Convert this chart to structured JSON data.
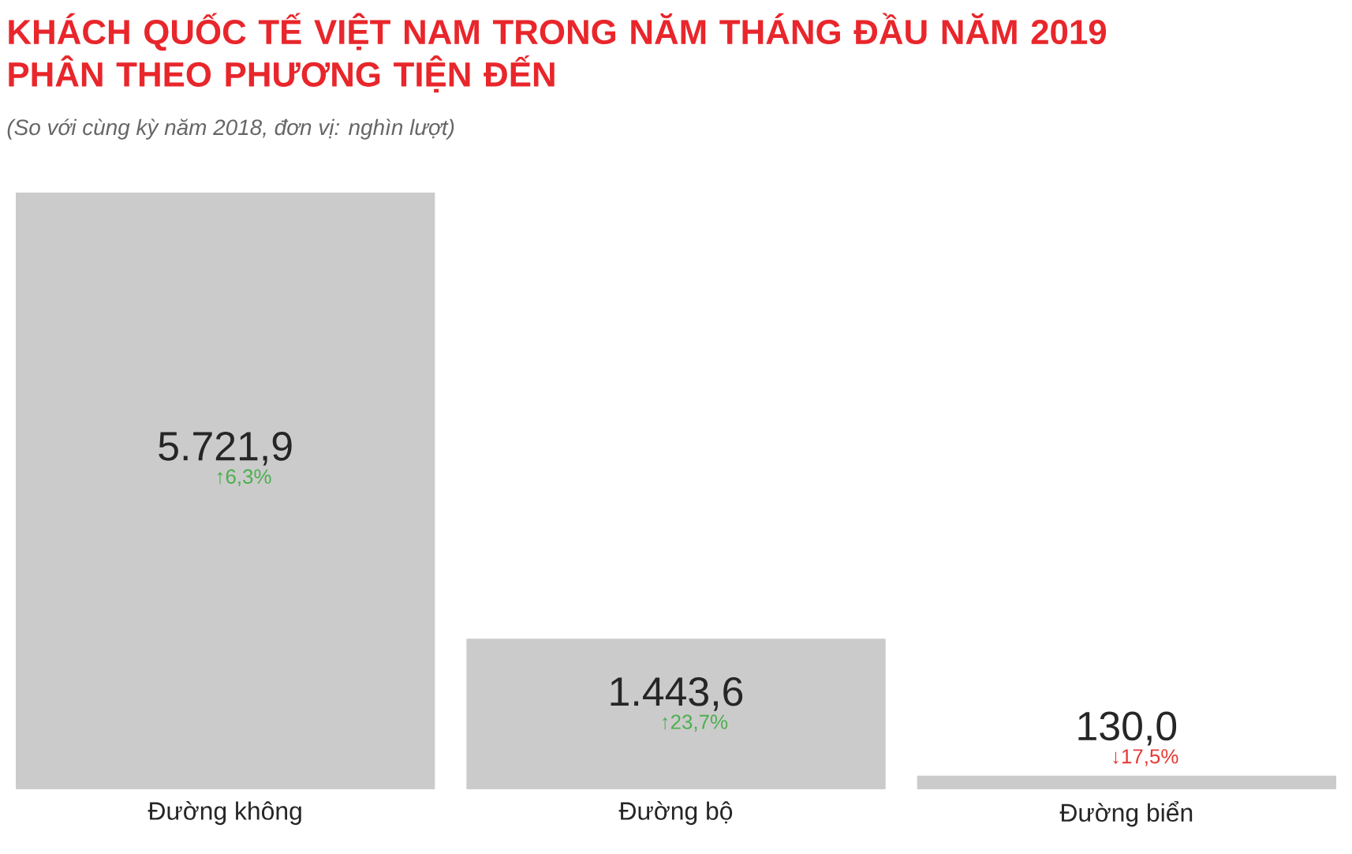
{
  "chart_data": {
    "type": "bar",
    "title": "KHÁCH QUỐC TẾ VIỆT NAM TRONG NĂM THÁNG ĐẦU NĂM 2019 PHÂN THEO PHƯƠNG TIỆN ĐẾN",
    "subtitle": "(So với cùng kỳ năm 2018, đơn vị: nghìn lượt)",
    "categories": [
      "Đường không",
      "Đường bộ",
      "Đường biển"
    ],
    "values": [
      5721.9,
      1443.6,
      130.0
    ],
    "value_labels": [
      "5.721,9",
      "1.443,6",
      "130,0"
    ],
    "color": "#cccbcb",
    "annotations": [
      "↑6,3%",
      "↑23,7%",
      "↓17,5%"
    ]
  }
}
